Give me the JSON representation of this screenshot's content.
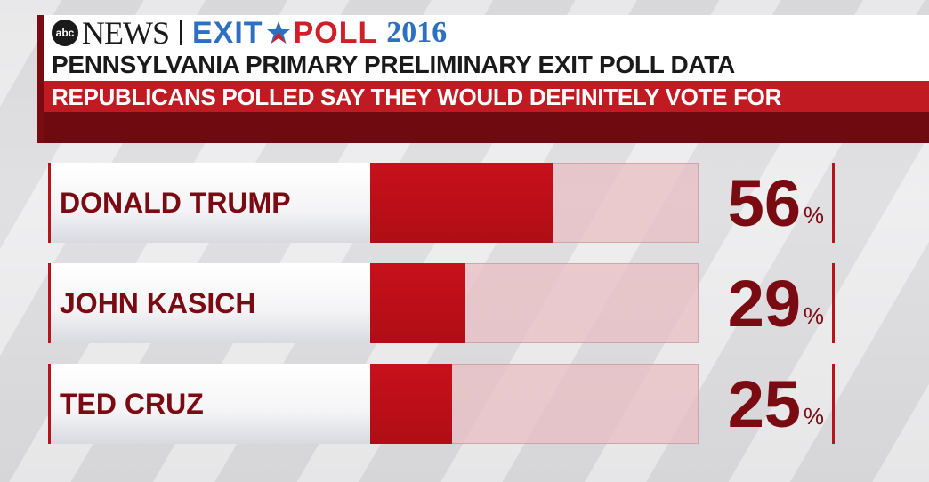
{
  "branding": {
    "abc": "abc",
    "news": "NEWS",
    "exit": "EXIT",
    "poll": "POLL",
    "year": "2016",
    "star_icon": "star-icon"
  },
  "colors": {
    "primary_red": "#c8101a",
    "dark_red": "#7a0b12",
    "track_pink": "#e8bec2",
    "brand_blue": "#2d6fc0"
  },
  "chart_data": {
    "type": "bar",
    "orientation": "horizontal",
    "title": "PENNSYLVANIA PRIMARY PRELIMINARY EXIT POLL DATA",
    "subtitle": "REPUBLICANS POLLED SAY THEY WOULD DEFINITELY VOTE FOR",
    "categories": [
      "DONALD TRUMP",
      "JOHN KASICH",
      "TED CRUZ"
    ],
    "values": [
      56,
      29,
      25
    ],
    "value_labels": [
      "56",
      "29",
      "25"
    ],
    "unit": "%",
    "xlim": [
      0,
      100
    ]
  }
}
